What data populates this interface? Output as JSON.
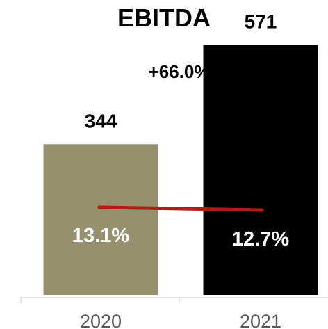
{
  "chart_data": {
    "type": "bar",
    "title": "EBITDA",
    "categories": [
      "2020",
      "2021"
    ],
    "values": [
      344,
      571
    ],
    "value_labels": [
      "344",
      "571"
    ],
    "bar_colors": [
      "#96906f",
      "#000000"
    ],
    "growth_label": "+66.0%",
    "overlay_line": {
      "type": "line",
      "values": [
        13.1,
        12.7
      ],
      "labels": [
        "13.1%",
        "12.7%"
      ],
      "color": "#b01b17"
    },
    "ylim": [
      0,
      600
    ],
    "grid": false,
    "legend": "none"
  }
}
